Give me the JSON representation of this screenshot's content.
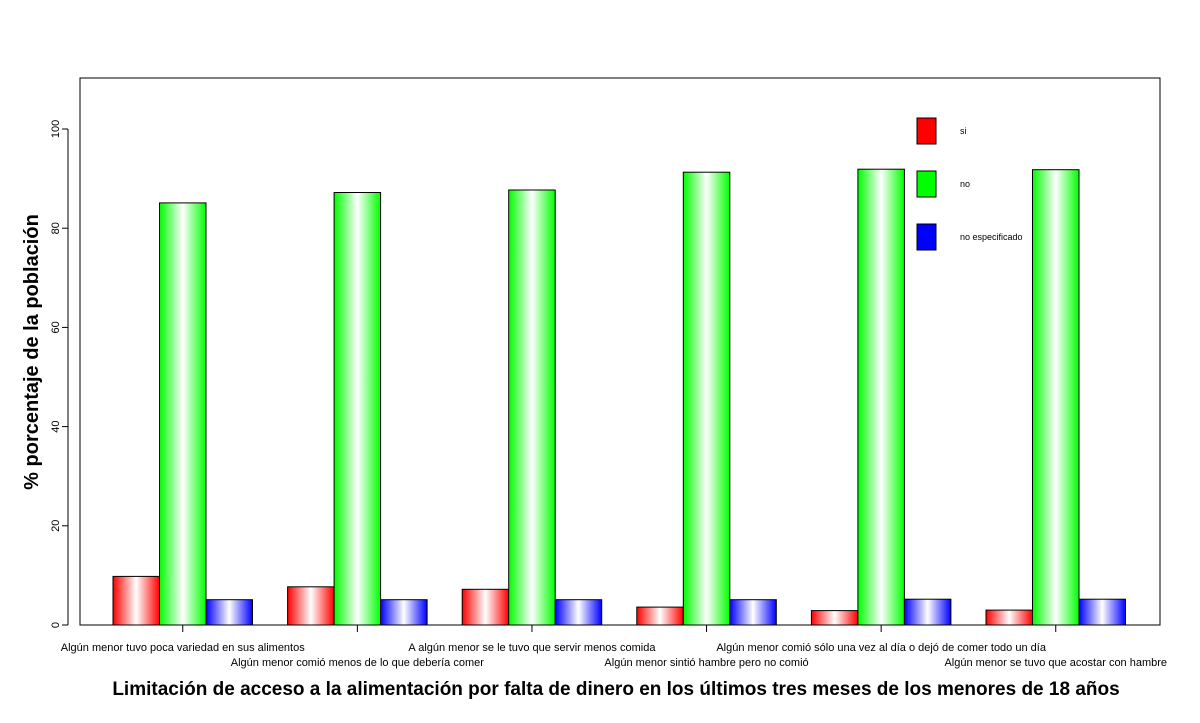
{
  "chart_data": {
    "type": "bar",
    "title": "",
    "xlabel": "Limitación de acceso a la alimentación por falta de dinero en los últimos tres meses de los menores de 18 años",
    "ylabel": "% porcentaje de la población",
    "ylim": [
      0,
      110
    ],
    "yticks": [
      0,
      20,
      40,
      60,
      80,
      100
    ],
    "categories": [
      "Algún menor tuvo poca variedad en sus alimentos",
      "Algún menor comió menos de lo que debería comer",
      "A algún menor se le tuvo que servir menos comida",
      "Algún menor sintió hambre pero no comió",
      "Algún menor comió sólo una vez al día o dejó de comer todo un día",
      "Algún menor se tuvo que acostar con hambre"
    ],
    "series": [
      {
        "name": "si",
        "color": "#ff0000",
        "values": [
          9.8,
          7.7,
          7.2,
          3.6,
          2.9,
          3.0
        ]
      },
      {
        "name": "no",
        "color": "#00ff00",
        "values": [
          85.1,
          87.2,
          87.7,
          91.3,
          91.9,
          91.8
        ]
      },
      {
        "name": "no especificado",
        "color": "#0000ff",
        "values": [
          5.1,
          5.1,
          5.1,
          5.1,
          5.2,
          5.2
        ]
      }
    ],
    "legend_position": "top-right",
    "grid": false
  }
}
